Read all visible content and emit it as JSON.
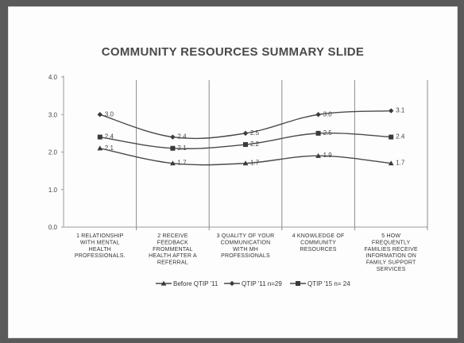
{
  "chart_data": {
    "type": "line",
    "title": "COMMUNITY RESOURCES SUMMARY SLIDE",
    "categories": [
      [
        "1  RELATIONSHIP",
        "WITH MENTAL",
        "HEALTH",
        "PROFESSIONALS."
      ],
      [
        "2  RECEIVE",
        "FEEDBACK",
        "FROMMENTAL",
        "HEALTH AFTER A",
        "REFERRAL"
      ],
      [
        "3 QUALITY OF YOUR",
        "COMMUNICATION",
        "WITH MH",
        "PROFESSIONALS"
      ],
      [
        "4  KNOWLEDGE OF",
        "COMMUNITY",
        "RESOURCES"
      ],
      [
        "5  HOW",
        "FREQUENTLY",
        "FAMILIES  RECEIVE",
        "INFORMATION ON",
        "FAMILY SUPPORT",
        "SERVICES"
      ]
    ],
    "yticks": [
      "0.0",
      "1.0",
      "2.0",
      "3.0",
      "4.0"
    ],
    "ylim": [
      0,
      4
    ],
    "series": [
      {
        "name": "Before QTIP '11",
        "marker": "triangle",
        "values": [
          2.1,
          1.7,
          1.7,
          1.9,
          1.7
        ],
        "labels": [
          "2.1",
          "1.7",
          "1.7",
          "1.9",
          "1.7"
        ]
      },
      {
        "name": "QTIP '11 n=29",
        "marker": "diamond",
        "values": [
          3.0,
          2.4,
          2.5,
          3.0,
          3.1
        ],
        "labels": [
          "3.0",
          "2.4",
          "2.5",
          "3.0",
          "3.1"
        ]
      },
      {
        "name": "QTIP '15 n= 24",
        "marker": "square",
        "values": [
          2.4,
          2.1,
          2.2,
          2.5,
          2.4
        ],
        "labels": [
          "2.4",
          "2.1",
          "2.2",
          "2.5",
          "2.4"
        ]
      }
    ]
  }
}
